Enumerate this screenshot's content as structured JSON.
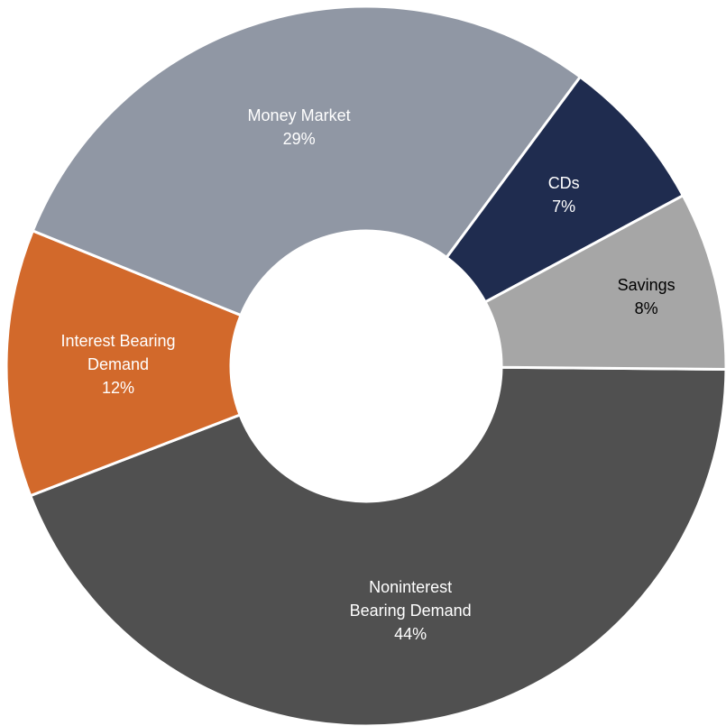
{
  "chart_data": {
    "type": "donut",
    "categories": [
      "Noninterest Bearing Demand",
      "Interest Bearing Demand",
      "Money Market",
      "CDs",
      "Savings"
    ],
    "values": [
      44,
      12,
      29,
      7,
      8
    ],
    "value_labels": [
      "44%",
      "12%",
      "29%",
      "7%",
      "8%"
    ],
    "colors": [
      "#505050",
      "#d2692b",
      "#9097a4",
      "#1f2c4f",
      "#a6a6a6"
    ]
  }
}
